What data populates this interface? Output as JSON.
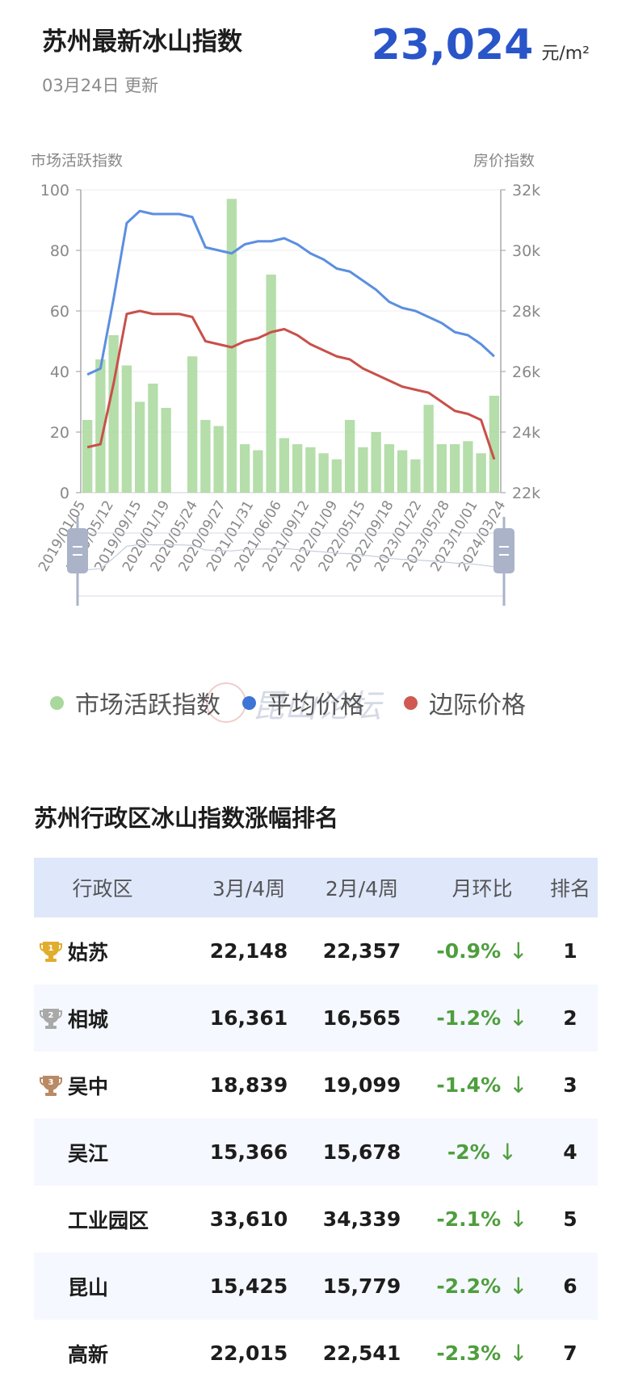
{
  "header": {
    "title": "苏州最新冰山指数",
    "date": "03月24日 更新",
    "price_value": "23,024",
    "price_unit": "元/m²"
  },
  "chart_data": {
    "type": "bar+line",
    "left_axis_title": "市场活跃指数",
    "right_axis_title": "房价指数",
    "left_ylim": [
      0,
      100
    ],
    "left_ticks": [
      "0",
      "20",
      "40",
      "60",
      "80",
      "100"
    ],
    "right_ylim": [
      22000,
      32000
    ],
    "right_ticks": [
      "22k",
      "24k",
      "26k",
      "28k",
      "30k",
      "32k"
    ],
    "x_tick_labels": [
      "2019/01/05",
      "2019/05/12",
      "2019/09/15",
      "2020/01/19",
      "2020/05/24",
      "2020/09/27",
      "2021/01/31",
      "2021/06/06",
      "2021/09/12",
      "2022/01/09",
      "2022/05/15",
      "2022/09/18",
      "2023/01/22",
      "2023/05/28",
      "2023/10/01",
      "2024/03/24"
    ],
    "series": [
      {
        "name": "市场活跃指数",
        "kind": "bar",
        "color": "#a8d89b",
        "x": [
          "2019/01",
          "2019/03",
          "2019/05",
          "2019/07",
          "2019/09",
          "2019/11",
          "2020/01",
          "2020/03",
          "2020/05",
          "2020/07",
          "2020/09",
          "2020/11",
          "2021/01",
          "2021/03",
          "2021/05",
          "2021/07",
          "2021/09",
          "2021/11",
          "2022/01",
          "2022/03",
          "2022/05",
          "2022/07",
          "2022/09",
          "2022/11",
          "2023/01",
          "2023/03",
          "2023/05",
          "2023/07",
          "2023/09",
          "2023/11",
          "2024/01",
          "2024/03"
        ],
        "values": [
          24,
          44,
          52,
          42,
          30,
          36,
          28,
          0,
          45,
          24,
          22,
          97,
          16,
          14,
          72,
          18,
          16,
          15,
          13,
          11,
          24,
          15,
          20,
          16,
          14,
          11,
          29,
          16,
          16,
          17,
          13,
          32
        ]
      },
      {
        "name": "平均价格",
        "kind": "line",
        "color": "#5b8fe0",
        "x": [
          "2019/01",
          "2019/03",
          "2019/05",
          "2019/07",
          "2019/09",
          "2019/11",
          "2020/01",
          "2020/03",
          "2020/05",
          "2020/07",
          "2020/09",
          "2020/11",
          "2021/01",
          "2021/03",
          "2021/05",
          "2021/07",
          "2021/09",
          "2021/11",
          "2022/01",
          "2022/03",
          "2022/05",
          "2022/07",
          "2022/09",
          "2022/11",
          "2023/01",
          "2023/03",
          "2023/05",
          "2023/07",
          "2023/09",
          "2023/11",
          "2024/01",
          "2024/03"
        ],
        "values": [
          25900,
          26100,
          28400,
          30900,
          31300,
          31200,
          31200,
          31200,
          31100,
          30100,
          30000,
          29900,
          30200,
          30300,
          30300,
          30400,
          30200,
          29900,
          29700,
          29400,
          29300,
          29000,
          28700,
          28300,
          28100,
          28000,
          27800,
          27600,
          27300,
          27200,
          26900,
          26500
        ]
      },
      {
        "name": "边际价格",
        "kind": "line",
        "color": "#c9504a",
        "x": [
          "2019/01",
          "2019/03",
          "2019/05",
          "2019/07",
          "2019/09",
          "2019/11",
          "2020/01",
          "2020/03",
          "2020/05",
          "2020/07",
          "2020/09",
          "2020/11",
          "2021/01",
          "2021/03",
          "2021/05",
          "2021/07",
          "2021/09",
          "2021/11",
          "2022/01",
          "2022/03",
          "2022/05",
          "2022/07",
          "2022/09",
          "2022/11",
          "2023/01",
          "2023/03",
          "2023/05",
          "2023/07",
          "2023/09",
          "2023/11",
          "2024/01",
          "2024/03"
        ],
        "values": [
          23500,
          23600,
          25600,
          27900,
          28000,
          27900,
          27900,
          27900,
          27800,
          27000,
          26900,
          26800,
          27000,
          27100,
          27300,
          27400,
          27200,
          26900,
          26700,
          26500,
          26400,
          26100,
          25900,
          25700,
          25500,
          25400,
          25300,
          25000,
          24700,
          24600,
          24400,
          23100
        ]
      }
    ],
    "legend_placement": "bottom"
  },
  "legend": [
    {
      "label": "市场活跃指数",
      "color": "#a8d89b"
    },
    {
      "label": "平均价格",
      "color": "#3e74d6"
    },
    {
      "label": "边际价格",
      "color": "#d05a52"
    }
  ],
  "watermark_text": "昆山论坛",
  "ranking": {
    "title": "苏州行政区冰山指数涨幅排名",
    "columns": [
      "行政区",
      "3月/4周",
      "2月/4周",
      "月环比",
      "排名"
    ],
    "rows": [
      {
        "name": "姑苏",
        "mar": "22,148",
        "feb": "22,357",
        "chg": "-0.9%",
        "rank": "1",
        "medal": "gold"
      },
      {
        "name": "相城",
        "mar": "16,361",
        "feb": "16,565",
        "chg": "-1.2%",
        "rank": "2",
        "medal": "silver"
      },
      {
        "name": "吴中",
        "mar": "18,839",
        "feb": "19,099",
        "chg": "-1.4%",
        "rank": "3",
        "medal": "bronze"
      },
      {
        "name": "吴江",
        "mar": "15,366",
        "feb": "15,678",
        "chg": "-2%",
        "rank": "4",
        "medal": ""
      },
      {
        "name": "工业园区",
        "mar": "33,610",
        "feb": "34,339",
        "chg": "-2.1%",
        "rank": "5",
        "medal": ""
      },
      {
        "name": "昆山",
        "mar": "15,425",
        "feb": "15,779",
        "chg": "-2.2%",
        "rank": "6",
        "medal": ""
      },
      {
        "name": "高新",
        "mar": "22,015",
        "feb": "22,541",
        "chg": "-2.3%",
        "rank": "7",
        "medal": ""
      }
    ],
    "medal_colors": {
      "gold": "#e0ad2c",
      "silver": "#a9a9a9",
      "bronze": "#b98a64"
    },
    "down_arrow": "↓"
  }
}
